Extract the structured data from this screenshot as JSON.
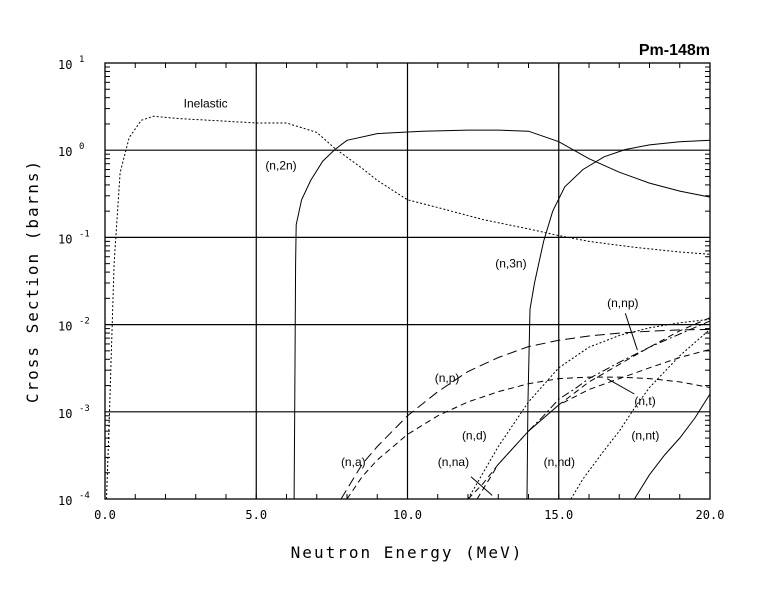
{
  "chart_data": {
    "type": "line",
    "title": "Pm-148m",
    "xlabel": "Neutron Energy (MeV)",
    "ylabel": "Cross Section (barns)",
    "xlim": [
      0,
      20
    ],
    "ylim": [
      0.0001,
      10
    ],
    "yscale": "log",
    "grid": true,
    "x_ticks": [
      "0.0",
      "5.0",
      "10.0",
      "15.0",
      "20.0"
    ],
    "x_tick_values": [
      0,
      5,
      10,
      15,
      20
    ],
    "y_ticks": [
      {
        "base": "10",
        "exp": "1",
        "value": 10
      },
      {
        "base": "10",
        "exp": "0",
        "value": 1
      },
      {
        "base": "10",
        "exp": "-1",
        "value": 0.1
      },
      {
        "base": "10",
        "exp": "-2",
        "value": 0.01
      },
      {
        "base": "10",
        "exp": "-3",
        "value": 0.001
      },
      {
        "base": "10",
        "exp": "-4",
        "value": 0.0001
      }
    ],
    "series": [
      {
        "name": "Inelastic",
        "style": "dotted",
        "x": [
          0.05,
          0.15,
          0.3,
          0.5,
          0.8,
          1.2,
          1.6,
          2.5,
          4.0,
          5.0,
          6.0,
          7.0,
          7.6,
          8.5,
          9.0,
          10.0,
          11.0,
          12.5,
          14.0,
          15.0,
          16.0,
          17.5,
          19.0,
          20.0
        ],
        "y": [
          0.0001,
          0.001,
          0.05,
          0.55,
          1.4,
          2.2,
          2.45,
          2.3,
          2.15,
          2.05,
          2.05,
          1.6,
          1.05,
          0.62,
          0.45,
          0.27,
          0.22,
          0.16,
          0.125,
          0.105,
          0.09,
          0.077,
          0.068,
          0.064
        ],
        "label_x": 2.6,
        "label_y": 3.1
      },
      {
        "name": "(n,2n)",
        "style": "solid",
        "x": [
          6.25,
          6.27,
          6.3,
          6.32,
          6.5,
          6.8,
          7.2,
          7.6,
          8.0,
          9.0,
          10.5,
          12.0,
          13.0,
          14.0,
          15.0,
          15.5,
          16.0,
          17.0,
          18.0,
          19.0,
          20.0
        ],
        "y": [
          0.0001,
          0.001,
          0.05,
          0.14,
          0.27,
          0.45,
          0.75,
          1.02,
          1.3,
          1.55,
          1.65,
          1.7,
          1.7,
          1.65,
          1.25,
          1.0,
          0.8,
          0.56,
          0.42,
          0.34,
          0.29
        ],
        "label_x": 5.3,
        "label_y": 0.6
      },
      {
        "name": "(n,3n)",
        "style": "solid",
        "x": [
          13.95,
          13.98,
          14.05,
          14.2,
          14.5,
          14.8,
          15.2,
          15.8,
          16.5,
          17.2,
          18.0,
          19.0,
          20.0
        ],
        "y": [
          0.0001,
          0.0012,
          0.015,
          0.03,
          0.09,
          0.2,
          0.38,
          0.6,
          0.84,
          1.02,
          1.15,
          1.25,
          1.3
        ],
        "label_x": 12.9,
        "label_y": 0.045
      },
      {
        "name": "(n,p)",
        "style": "longdash",
        "x": [
          7.8,
          8.5,
          9.0,
          10.0,
          11.0,
          12.0,
          13.0,
          14.0,
          15.0,
          16.0,
          17.0,
          18.0,
          19.0,
          20.0
        ],
        "y": [
          0.0001,
          0.00025,
          0.0004,
          0.0009,
          0.0017,
          0.0029,
          0.0042,
          0.0056,
          0.0066,
          0.0074,
          0.008,
          0.0084,
          0.0087,
          0.0088
        ],
        "label_x": 10.9,
        "label_y": 0.0022
      },
      {
        "name": "(n,a)",
        "style": "dashed",
        "x": [
          8.0,
          8.5,
          9.0,
          10.0,
          11.0,
          12.0,
          13.0,
          14.0,
          15.0,
          16.0,
          17.0,
          18.0,
          19.0,
          20.0
        ],
        "y": [
          0.0001,
          0.00018,
          0.00028,
          0.00055,
          0.0009,
          0.0013,
          0.0017,
          0.0021,
          0.0024,
          0.0025,
          0.0025,
          0.0024,
          0.0022,
          0.0019
        ],
        "label_x": 7.8,
        "label_y": 0.00024
      },
      {
        "name": "(n,d)",
        "style": "dotted",
        "x": [
          12.0,
          12.5,
          13.0,
          14.0,
          15.0,
          16.0,
          17.0,
          18.0,
          19.0,
          20.0
        ],
        "y": [
          0.0001,
          0.0002,
          0.0004,
          0.0013,
          0.0032,
          0.0055,
          0.0075,
          0.0092,
          0.0105,
          0.0115
        ],
        "label_x": 11.8,
        "label_y": 0.00048
      },
      {
        "name": "(n,na)",
        "style": "dashed",
        "x": [
          12.0,
          12.5,
          13.0,
          14.0,
          15.0,
          16.0,
          17.0,
          18.0,
          19.0,
          20.0
        ],
        "y": [
          0.0001,
          0.00015,
          0.00025,
          0.0006,
          0.0012,
          0.0022,
          0.0035,
          0.0055,
          0.0085,
          0.012
        ],
        "label_x": 11.0,
        "label_y": 0.00024
      },
      {
        "name": "(n,np)",
        "style": "dashdot",
        "x": [
          14.0,
          14.5,
          15.0,
          15.5,
          16.0,
          17.0,
          18.0,
          19.0,
          20.0
        ],
        "y": [
          0.0006,
          0.0009,
          0.0014,
          0.0018,
          0.0024,
          0.0037,
          0.0055,
          0.0078,
          0.011
        ],
        "label_x": 16.6,
        "label_y": 0.016
      },
      {
        "name": "(n,t)",
        "style": "dashed",
        "x": [
          12.3,
          13.0,
          14.0,
          15.0,
          16.0,
          17.0,
          18.0,
          19.0,
          20.0
        ],
        "y": [
          0.0001,
          0.00025,
          0.0006,
          0.0012,
          0.0018,
          0.0024,
          0.0032,
          0.0042,
          0.0052
        ],
        "label_x": 17.5,
        "label_y": 0.0012
      },
      {
        "name": "(n,nd)",
        "style": "dotted",
        "x": [
          15.4,
          15.8,
          16.5,
          17.0,
          17.5,
          18.0,
          19.0,
          20.0
        ],
        "y": [
          0.0001,
          0.00017,
          0.00036,
          0.0006,
          0.0011,
          0.0019,
          0.0044,
          0.0088
        ],
        "label_x": 14.5,
        "label_y": 0.00024
      },
      {
        "name": "(n,nt)",
        "style": "solid",
        "x": [
          17.5,
          18.0,
          18.5,
          19.0,
          19.5,
          20.0
        ],
        "y": [
          0.0001,
          0.00019,
          0.00032,
          0.0005,
          0.00085,
          0.0016
        ],
        "label_x": 17.4,
        "label_y": 0.00048
      }
    ],
    "leaders": [
      {
        "series": "(n,np)",
        "from": [
          17.2,
          0.0135
        ],
        "to": [
          17.6,
          0.0051
        ]
      },
      {
        "series": "(n,t)",
        "from": [
          17.5,
          0.0016
        ],
        "to": [
          16.6,
          0.0024
        ]
      },
      {
        "series": "(n,na)",
        "from": [
          12.1,
          0.00018
        ],
        "to": [
          12.8,
          0.00011
        ]
      }
    ]
  }
}
